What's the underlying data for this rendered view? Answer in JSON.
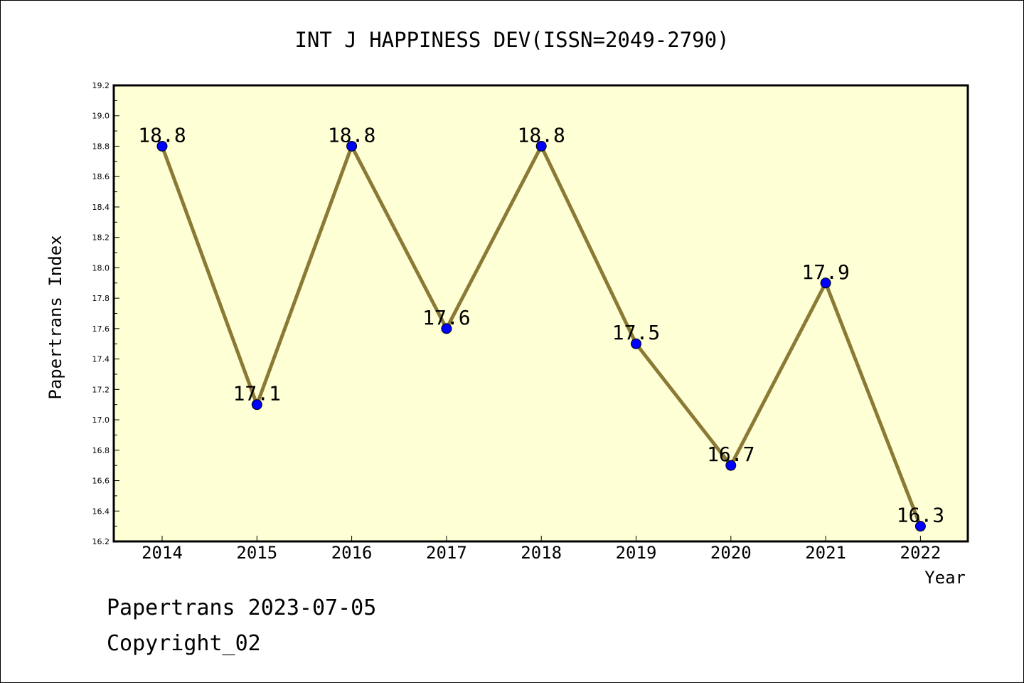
{
  "chart_data": {
    "type": "line",
    "title": "INT J HAPPINESS DEV(ISSN=2049-2790)",
    "xlabel": "Year",
    "ylabel": "Papertrans Index",
    "categories": [
      "2014",
      "2015",
      "2016",
      "2017",
      "2018",
      "2019",
      "2020",
      "2021",
      "2022"
    ],
    "series": [
      {
        "values": [
          18.8,
          17.1,
          18.8,
          17.6,
          18.8,
          17.5,
          16.7,
          17.9,
          16.3
        ],
        "data_labels": [
          "18.8",
          "17.1",
          "18.8",
          "17.6",
          "18.8",
          "17.5",
          "16.7",
          "17.9",
          "16.3"
        ]
      }
    ],
    "ylim": [
      16.2,
      19.2
    ],
    "yticks": [
      "16.2",
      "16.4",
      "16.6",
      "16.8",
      "17.0",
      "17.2",
      "17.4",
      "17.6",
      "17.8",
      "18.0",
      "18.2",
      "18.4",
      "18.6",
      "18.8",
      "19.0",
      "19.2"
    ],
    "grid": false,
    "colors": {
      "plot_background": "#ffffd6",
      "line": "#8b7a35",
      "marker": "#0000ff",
      "frame": "#000000"
    }
  },
  "footer": {
    "line1": "Papertrans 2023-07-05",
    "line2": "Copyright_02"
  }
}
